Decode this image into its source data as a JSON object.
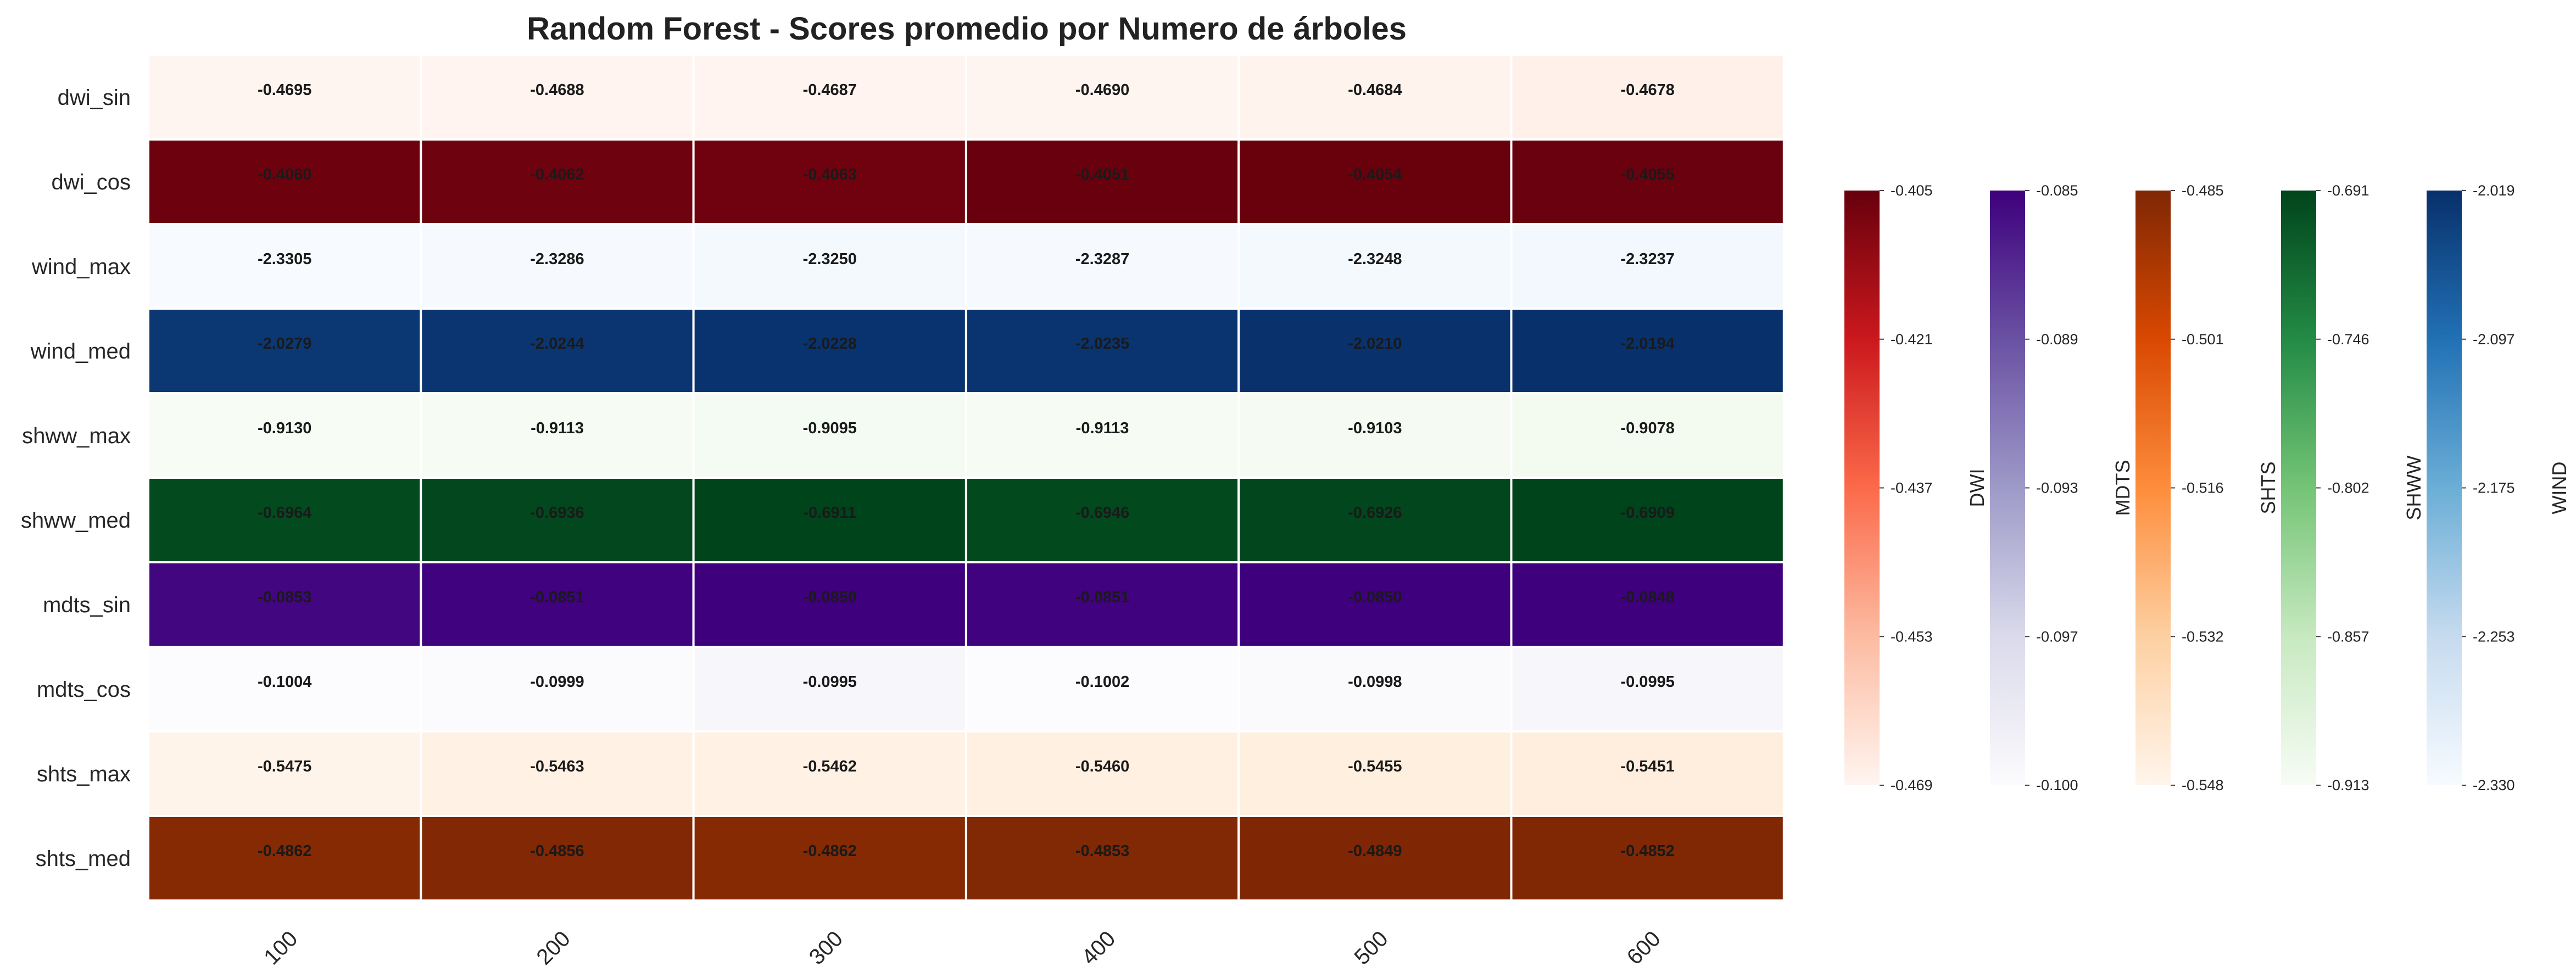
{
  "chart_data": {
    "type": "heatmap",
    "title": "Random Forest - Scores promedio por Numero de árboles",
    "x": [
      "100",
      "200",
      "300",
      "400",
      "500",
      "600"
    ],
    "rows": [
      {
        "name": "dwi_sin",
        "group": "DWI",
        "values": [
          -0.4695,
          -0.4688,
          -0.4687,
          -0.469,
          -0.4684,
          -0.4678
        ],
        "labels": [
          "-0.4695",
          "-0.4688",
          "-0.4687",
          "-0.4690",
          "-0.4684",
          "-0.4678"
        ]
      },
      {
        "name": "dwi_cos",
        "group": "DWI",
        "values": [
          -0.406,
          -0.4062,
          -0.4063,
          -0.4051,
          -0.4054,
          -0.4055
        ],
        "labels": [
          "-0.4060",
          "-0.4062",
          "-0.4063",
          "-0.4051",
          "-0.4054",
          "-0.4055"
        ]
      },
      {
        "name": "wind_max",
        "group": "WIND",
        "values": [
          -2.3305,
          -2.3286,
          -2.325,
          -2.3287,
          -2.3248,
          -2.3237
        ],
        "labels": [
          "-2.3305",
          "-2.3286",
          "-2.3250",
          "-2.3287",
          "-2.3248",
          "-2.3237"
        ]
      },
      {
        "name": "wind_med",
        "group": "WIND",
        "values": [
          -2.0279,
          -2.0244,
          -2.0228,
          -2.0235,
          -2.021,
          -2.0194
        ],
        "labels": [
          "-2.0279",
          "-2.0244",
          "-2.0228",
          "-2.0235",
          "-2.0210",
          "-2.0194"
        ]
      },
      {
        "name": "shww_max",
        "group": "SHWW",
        "values": [
          -0.913,
          -0.9113,
          -0.9095,
          -0.9113,
          -0.9103,
          -0.9078
        ],
        "labels": [
          "-0.9130",
          "-0.9113",
          "-0.9095",
          "-0.9113",
          "-0.9103",
          "-0.9078"
        ]
      },
      {
        "name": "shww_med",
        "group": "SHWW",
        "values": [
          -0.6964,
          -0.6936,
          -0.6911,
          -0.6946,
          -0.6926,
          -0.6909
        ],
        "labels": [
          "-0.6964",
          "-0.6936",
          "-0.6911",
          "-0.6946",
          "-0.6926",
          "-0.6909"
        ]
      },
      {
        "name": "mdts_sin",
        "group": "MDTS",
        "values": [
          -0.0853,
          -0.0851,
          -0.085,
          -0.0851,
          -0.085,
          -0.0848
        ],
        "labels": [
          "-0.0853",
          "-0.0851",
          "-0.0850",
          "-0.0851",
          "-0.0850",
          "-0.0848"
        ]
      },
      {
        "name": "mdts_cos",
        "group": "MDTS",
        "values": [
          -0.1004,
          -0.0999,
          -0.0995,
          -0.1002,
          -0.0998,
          -0.0995
        ],
        "labels": [
          "-0.1004",
          "-0.0999",
          "-0.0995",
          "-0.1002",
          "-0.0998",
          "-0.0995"
        ]
      },
      {
        "name": "shts_max",
        "group": "SHTS",
        "values": [
          -0.5475,
          -0.5463,
          -0.5462,
          -0.546,
          -0.5455,
          -0.5451
        ],
        "labels": [
          "-0.5475",
          "-0.5463",
          "-0.5462",
          "-0.5460",
          "-0.5455",
          "-0.5451"
        ]
      },
      {
        "name": "shts_med",
        "group": "SHTS",
        "values": [
          -0.4862,
          -0.4856,
          -0.4862,
          -0.4853,
          -0.4849,
          -0.4852
        ],
        "labels": [
          "-0.4862",
          "-0.4856",
          "-0.4862",
          "-0.4853",
          "-0.4849",
          "-0.4852"
        ]
      }
    ],
    "colorbars": [
      {
        "label": "DWI",
        "min": -0.469,
        "max": -0.405,
        "ticks": [
          "-0.405",
          "-0.421",
          "-0.437",
          "-0.453",
          "-0.469"
        ],
        "colors": [
          "#fff5f0",
          "#fcbba1",
          "#fb6a4a",
          "#cb181d",
          "#67000d"
        ]
      },
      {
        "label": "MDTS",
        "min": -0.1,
        "max": -0.085,
        "ticks": [
          "-0.085",
          "-0.089",
          "-0.093",
          "-0.097",
          "-0.100"
        ],
        "colors": [
          "#fcfbfd",
          "#dadaeb",
          "#9e9ac8",
          "#6a51a3",
          "#3f007d"
        ]
      },
      {
        "label": "SHTS",
        "min": -0.548,
        "max": -0.485,
        "ticks": [
          "-0.485",
          "-0.501",
          "-0.516",
          "-0.532",
          "-0.548"
        ],
        "colors": [
          "#fff5eb",
          "#fdd0a2",
          "#fd8d3c",
          "#d94801",
          "#7f2704"
        ]
      },
      {
        "label": "SHWW",
        "min": -0.913,
        "max": -0.691,
        "ticks": [
          "-0.691",
          "-0.746",
          "-0.802",
          "-0.857",
          "-0.913"
        ],
        "colors": [
          "#f7fcf5",
          "#c7e9c0",
          "#74c476",
          "#238b45",
          "#00441b"
        ]
      },
      {
        "label": "WIND",
        "min": -2.33,
        "max": -2.019,
        "ticks": [
          "-2.019",
          "-2.097",
          "-2.175",
          "-2.253",
          "-2.330"
        ],
        "colors": [
          "#f7fbff",
          "#c6dbef",
          "#6baed6",
          "#2171b5",
          "#08306b"
        ]
      }
    ],
    "legend": "right",
    "grid": false
  }
}
